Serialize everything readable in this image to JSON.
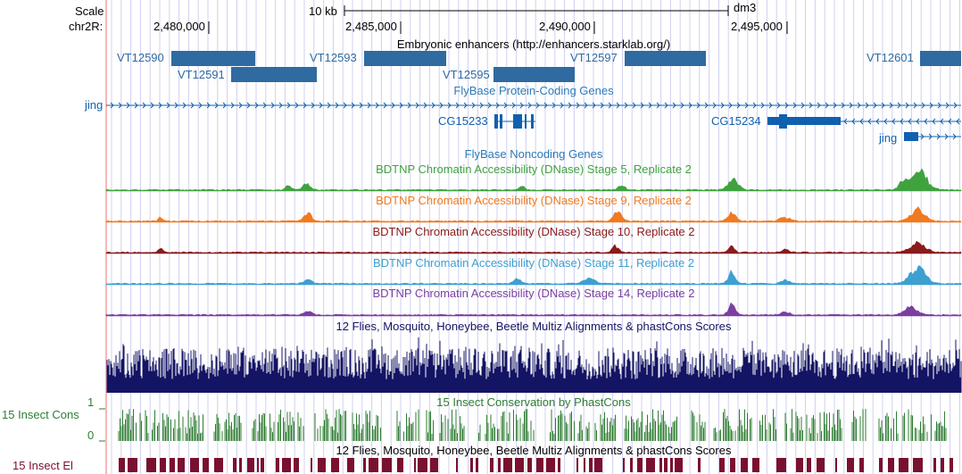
{
  "ruler": {
    "scale_label": "Scale",
    "chrom_label": "chr2R:",
    "scale_bar_text": "10 kb",
    "assembly": "dm3",
    "ticks": [
      "2,480,000",
      "2,485,000",
      "2,490,000",
      "2,495,000"
    ]
  },
  "enhancers": {
    "title": "Embryonic enhancers (http://enhancers.starklab.org/)",
    "items": [
      {
        "name": "VT12590"
      },
      {
        "name": "VT12591"
      },
      {
        "name": "VT12593"
      },
      {
        "name": "VT12595"
      },
      {
        "name": "VT12597"
      },
      {
        "name": "VT12601"
      }
    ]
  },
  "genes": {
    "title": "FlyBase Protein-Coding Genes",
    "left_label": "jing",
    "items": [
      "CG15233",
      "CG15234",
      "jing"
    ]
  },
  "noncoding": {
    "title": "FlyBase Noncoding Genes"
  },
  "dnase": [
    {
      "title": "BDTNP Chromatin Accessibility (DNase) Stage 5, Replicate 2",
      "color": "#3fa23f"
    },
    {
      "title": "BDTNP Chromatin Accessibility (DNase) Stage 9, Replicate 2",
      "color": "#f07a20"
    },
    {
      "title": "BDTNP Chromatin Accessibility (DNase) Stage 10, Replicate 2",
      "color": "#8b1a1a"
    },
    {
      "title": "BDTNP Chromatin Accessibility (DNase) Stage 11, Replicate 2",
      "color": "#3da0d0"
    },
    {
      "title": "BDTNP Chromatin Accessibility (DNase) Stage 14, Replicate 2",
      "color": "#7a3fa0"
    }
  ],
  "multiz": {
    "title": "12 Flies, Mosquito, Honeybee, Beetle Multiz Alignments & phastCons Scores",
    "color": "#141464"
  },
  "conservation": {
    "title": "15 Insect Conservation by PhastCons",
    "left_label": "15 Insect Cons",
    "y_max_label": "1",
    "y_min_label": "0",
    "color": "#2e7d32"
  },
  "elements": {
    "title": "12 Flies, Mosquito, Honeybee, Beetle Multiz Alignments & phastCons Scores",
    "left_label": "15 Insect El",
    "color": "#7a1030"
  },
  "colors": {
    "feature_blue": "#2f6aa0",
    "gene_blue": "#1060b0",
    "track_title_blue": "#2a7ab8",
    "dark_navy": "#141464",
    "red_line": "#f2a0a0",
    "grid_blue": "#d0d0f0"
  }
}
